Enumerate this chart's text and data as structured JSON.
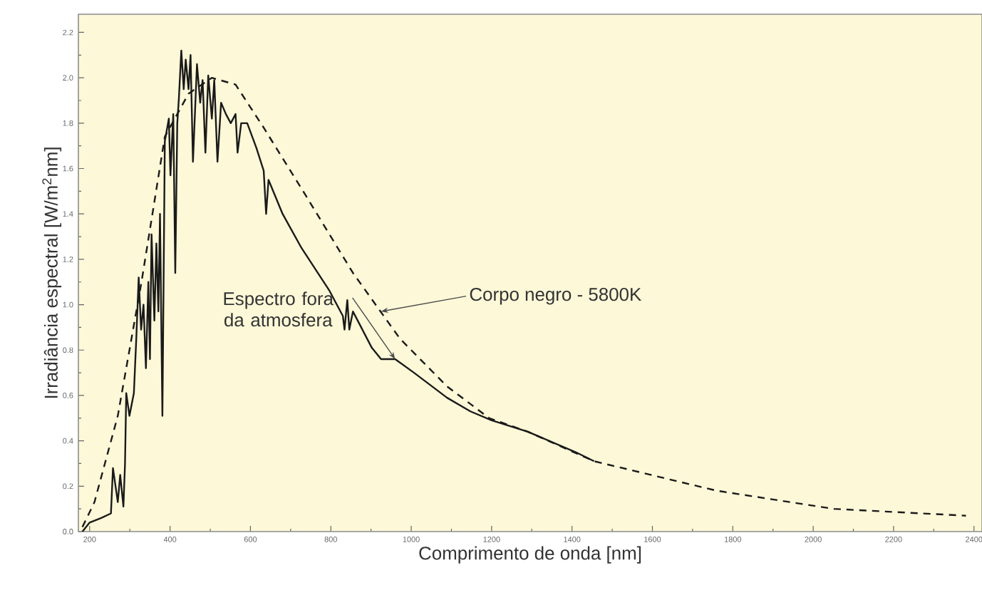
{
  "chart_data": {
    "type": "line",
    "xlabel": "Comprimento de onda [nm]",
    "ylabel": "Irradiância espectral [W/m$^{2}$nm]",
    "xlim": [
      172,
      2420
    ],
    "ylim": [
      0,
      2.28
    ],
    "xticks": [
      200,
      400,
      600,
      800,
      1000,
      1200,
      1400,
      1600,
      1800,
      2000,
      2200,
      2400
    ],
    "yticks": [
      {
        "value": 0,
        "label": "0.0"
      },
      0.2,
      0.4,
      0.6,
      0.8,
      {
        "value": 1,
        "label": "1.0"
      },
      1.2,
      1.4,
      1.6,
      1.8,
      {
        "value": 2,
        "label": "2.0"
      },
      2.2
    ],
    "series": [
      {
        "color": "#1a1a1a",
        "line_style": "dashed",
        "x": [
          182,
          212,
          270,
          329,
          387,
          446,
          504,
          563,
          633,
          738,
          855,
          972,
          1089,
          1194,
          1290,
          1455,
          1760,
          2052,
          2380
        ],
        "values": [
          0.02,
          0.13,
          0.51,
          1.1,
          1.74,
          1.93,
          2.0,
          1.97,
          1.78,
          1.48,
          1.14,
          0.85,
          0.64,
          0.5,
          0.44,
          0.31,
          0.18,
          0.1,
          0.07
        ]
      },
      {
        "color": "#1a1a1a",
        "line_style": "solid",
        "x": [
          182,
          200,
          229,
          253,
          258,
          270,
          276,
          284,
          288,
          291,
          299,
          310,
          316,
          322,
          328,
          334,
          340,
          346,
          350,
          354,
          361,
          366,
          371,
          375,
          381,
          387,
          397,
          401,
          408,
          413,
          418,
          422,
          428,
          434,
          439,
          446,
          451,
          457,
          467,
          475,
          481,
          488,
          495,
          504,
          510,
          518,
          527,
          539,
          551,
          563,
          568,
          577,
          592,
          615,
          633,
          639,
          645,
          680,
          727,
          797,
          830,
          834,
          841,
          846,
          855,
          902,
          925,
          960,
          1007,
          1089,
          1147,
          1200,
          1290,
          1409,
          1455
        ],
        "values": [
          0.0,
          0.04,
          0.06,
          0.08,
          0.28,
          0.13,
          0.25,
          0.11,
          0.3,
          0.61,
          0.51,
          0.61,
          0.85,
          1.12,
          0.89,
          1.0,
          0.72,
          1.1,
          0.76,
          1.31,
          0.93,
          1.27,
          0.97,
          1.4,
          0.51,
          1.72,
          1.82,
          1.57,
          1.84,
          1.14,
          1.8,
          1.91,
          2.12,
          1.95,
          2.08,
          1.95,
          2.1,
          1.63,
          2.06,
          1.89,
          1.99,
          1.67,
          2.01,
          1.82,
          1.99,
          1.63,
          1.89,
          1.84,
          1.8,
          1.84,
          1.67,
          1.8,
          1.8,
          1.69,
          1.59,
          1.4,
          1.55,
          1.4,
          1.25,
          1.06,
          0.95,
          0.89,
          1.02,
          0.89,
          0.97,
          0.81,
          0.76,
          0.76,
          0.7,
          0.59,
          0.53,
          0.49,
          0.44,
          0.35,
          0.31
        ]
      }
    ],
    "annotations": [
      {
        "text": "Corpo negro - 5800K",
        "x": 925,
        "y": 0.97
      },
      {
        "text": "Espectro fora da atmosfera",
        "x": 960,
        "y": 0.76
      }
    ]
  }
}
